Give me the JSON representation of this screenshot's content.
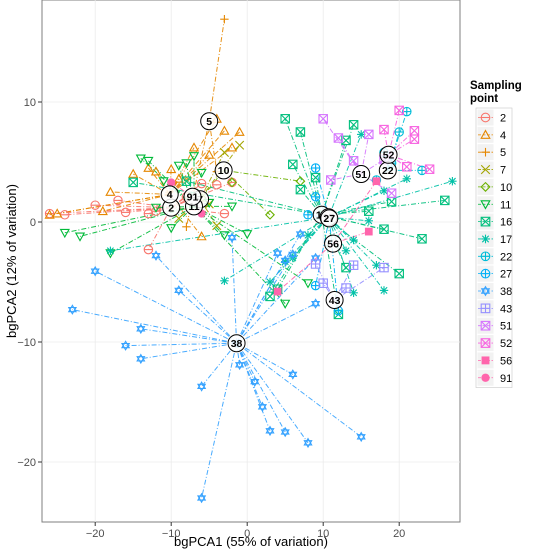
{
  "chart_data": {
    "type": "scatter",
    "title": "",
    "xlabel": "bgPCA1 (55% of variation)",
    "ylabel": "bgPCA2 (12% of variation)",
    "xlim": [
      -27,
      28
    ],
    "ylim": [
      -25,
      18.5
    ],
    "xticks": [
      -20,
      -10,
      0,
      10,
      20
    ],
    "yticks": [
      -20,
      -10,
      0,
      10
    ],
    "grid": true,
    "legend": {
      "title": "Sampling point",
      "position": "right"
    },
    "series": [
      {
        "name": "2",
        "color": "#F8766D",
        "symbol": "circle-minus",
        "centroid": [
          -10,
          1.2
        ],
        "points": [
          [
            -26,
            0.7
          ],
          [
            -24,
            0.6
          ],
          [
            -20,
            1.4
          ],
          [
            -17,
            1.8
          ],
          [
            -16,
            0.8
          ],
          [
            -13,
            0.7
          ],
          [
            -12,
            0.9
          ],
          [
            -8,
            2.1
          ],
          [
            -6,
            3.2
          ],
          [
            -4,
            3.1
          ],
          [
            -2,
            3.3
          ],
          [
            -3,
            0.7
          ],
          [
            -13,
            -2.3
          ]
        ]
      },
      {
        "name": "4",
        "color": "#E58700",
        "symbol": "triangle",
        "centroid": [
          -10.2,
          2.3
        ],
        "points": [
          [
            -26,
            0.6
          ],
          [
            -25,
            0.7
          ],
          [
            -19,
            0.9
          ],
          [
            -18,
            2.5
          ],
          [
            -15,
            4.0
          ],
          [
            -13,
            4.5
          ],
          [
            -12,
            4.2
          ],
          [
            -10,
            4.4
          ],
          [
            -9,
            3.6
          ],
          [
            -7,
            6.2
          ],
          [
            -5,
            5.6
          ],
          [
            -4,
            8.6
          ],
          [
            -3,
            7.6
          ],
          [
            -2,
            6.2
          ],
          [
            -1,
            7.5
          ],
          [
            -6,
            -1.2
          ]
        ]
      },
      {
        "name": "5",
        "color": "#E58700",
        "symbol": "plus",
        "centroid": [
          -5,
          8.4
        ],
        "points": [
          [
            -3,
            16.9
          ],
          [
            -4,
            4.2
          ],
          [
            -8,
            -0.4
          ]
        ]
      },
      {
        "name": "7",
        "color": "#A3A500",
        "symbol": "cross",
        "centroid": [
          -6.2,
          1.9
        ],
        "points": [
          [
            -9,
            0.3
          ],
          [
            -5,
            1.5
          ],
          [
            -3,
            5.8
          ],
          [
            -1,
            6.4
          ],
          [
            -4,
            -0.3
          ]
        ]
      },
      {
        "name": "10",
        "color": "#6BB100",
        "symbol": "diamond",
        "centroid": [
          -3.1,
          4.3
        ],
        "points": [
          [
            -6,
            2.0
          ],
          [
            -2,
            3.3
          ],
          [
            3,
            0.6
          ],
          [
            7,
            3.4
          ]
        ]
      },
      {
        "name": "11",
        "color": "#00BA38",
        "symbol": "triangle-down",
        "centroid": [
          -7,
          1.3
        ],
        "points": [
          [
            -24,
            -0.9
          ],
          [
            -22,
            -1.2
          ],
          [
            -18,
            -2.6
          ],
          [
            -14,
            5.3
          ],
          [
            -13,
            5.1
          ],
          [
            -12,
            1.2
          ],
          [
            -11,
            3.4
          ],
          [
            -9,
            4.7
          ],
          [
            -8,
            4.9
          ],
          [
            -7,
            5.5
          ],
          [
            -6,
            4.1
          ],
          [
            -5,
            1.6
          ],
          [
            -2,
            1.3
          ],
          [
            0,
            -1.0
          ],
          [
            -3,
            -1.1
          ],
          [
            5,
            -6.8
          ],
          [
            8,
            -5.1
          ],
          [
            -10,
            -0.5
          ]
        ]
      },
      {
        "name": "16",
        "color": "#00BF7D",
        "symbol": "square-cross",
        "centroid": [
          9.8,
          0.6
        ],
        "points": [
          [
            -15,
            3.3
          ],
          [
            -8,
            3.4
          ],
          [
            5,
            8.6
          ],
          [
            6,
            4.8
          ],
          [
            7,
            7.5
          ],
          [
            9,
            3.7
          ],
          [
            13,
            6.8
          ],
          [
            14,
            8.1
          ],
          [
            16,
            0.9
          ],
          [
            18,
            -0.6
          ],
          [
            19,
            1.7
          ],
          [
            23,
            -1.4
          ],
          [
            26,
            1.8
          ],
          [
            20,
            -4.3
          ],
          [
            13,
            -3.8
          ],
          [
            12,
            -7.7
          ],
          [
            4,
            -5.6
          ],
          [
            3,
            -6.2
          ],
          [
            7,
            2.7
          ]
        ]
      },
      {
        "name": "17",
        "color": "#00C1A7",
        "symbol": "asterisk",
        "centroid": [
          10.7,
          0.4
        ],
        "points": [
          [
            27,
            3.4
          ],
          [
            21,
            3.6
          ],
          [
            18,
            2.6
          ],
          [
            16,
            0.1
          ],
          [
            14,
            -1.5
          ],
          [
            17,
            -3.6
          ],
          [
            18,
            -5.7
          ],
          [
            14,
            -5.9
          ],
          [
            13,
            -2.4
          ],
          [
            8,
            -1.1
          ],
          [
            6,
            -3.0
          ],
          [
            5,
            -3.3
          ],
          [
            -3,
            -4.9
          ],
          [
            -18,
            -2.4
          ],
          [
            3,
            -5.0
          ],
          [
            15,
            7.3
          ]
        ]
      },
      {
        "name": "22",
        "color": "#00BCD8",
        "symbol": "circle-plus",
        "centroid": [
          18.5,
          4.3
        ],
        "points": [
          [
            21,
            9.2
          ],
          [
            20,
            7.5
          ],
          [
            18,
            5.8
          ],
          [
            19,
            4.9
          ],
          [
            23,
            4.3
          ],
          [
            17,
            3.5
          ]
        ]
      },
      {
        "name": "27",
        "color": "#00B0F6",
        "symbol": "circle-plus",
        "centroid": [
          10.8,
          0.3
        ],
        "points": [
          [
            9,
            4.5
          ],
          [
            9,
            2.1
          ],
          [
            8,
            0.6
          ],
          [
            12,
            -7.4
          ],
          [
            9,
            -5.3
          ]
        ]
      },
      {
        "name": "38",
        "color": "#35A2FF",
        "symbol": "star-of-david",
        "centroid": [
          -1.4,
          -10.1
        ],
        "points": [
          [
            -23,
            -7.3
          ],
          [
            -20,
            -4.1
          ],
          [
            -16,
            -10.3
          ],
          [
            -14,
            -8.9
          ],
          [
            -14,
            -11.4
          ],
          [
            -12,
            -2.8
          ],
          [
            -9,
            -5.7
          ],
          [
            -6,
            -13.7
          ],
          [
            -2,
            -1.3
          ],
          [
            -1,
            -11.9
          ],
          [
            1,
            -13.3
          ],
          [
            2,
            -15.4
          ],
          [
            3,
            -17.4
          ],
          [
            5,
            -17.5
          ],
          [
            6,
            -12.7
          ],
          [
            8,
            -18.4
          ],
          [
            15,
            -17.9
          ],
          [
            -6,
            -23.0
          ],
          [
            4,
            -2.6
          ],
          [
            5,
            -3.2
          ],
          [
            6,
            -2.7
          ],
          [
            9,
            -3.0
          ],
          [
            7,
            -1.0
          ],
          [
            9,
            -6.8
          ]
        ]
      },
      {
        "name": "43",
        "color": "#9590FF",
        "symbol": "square-plus",
        "centroid": [
          11.5,
          -6.5
        ],
        "points": [
          [
            9,
            -3.5
          ],
          [
            10,
            -5.1
          ],
          [
            13,
            -5.5
          ],
          [
            18,
            -3.8
          ],
          [
            14,
            -3.6
          ]
        ]
      },
      {
        "name": "51",
        "color": "#D575FE",
        "symbol": "square-cross",
        "centroid": [
          15,
          4.0
        ],
        "points": [
          [
            10,
            8.6
          ],
          [
            12,
            7.0
          ],
          [
            14,
            5.1
          ],
          [
            16,
            7.3
          ],
          [
            18,
            5.2
          ],
          [
            11,
            3.5
          ],
          [
            19,
            2.4
          ]
        ]
      },
      {
        "name": "52",
        "color": "#F763E0",
        "symbol": "square-x",
        "centroid": [
          18.6,
          5.6
        ],
        "points": [
          [
            20,
            9.3
          ],
          [
            22,
            7.6
          ],
          [
            21,
            4.6
          ],
          [
            24,
            4.4
          ],
          [
            18,
            7.7
          ],
          [
            22,
            6.9
          ]
        ]
      },
      {
        "name": "56",
        "color": "#FF65AC",
        "symbol": "square-filled",
        "centroid": [
          11.3,
          -1.8
        ],
        "points": [
          [
            4,
            -5.8
          ],
          [
            17,
            3.4
          ],
          [
            16,
            -0.8
          ]
        ]
      },
      {
        "name": "91",
        "color": "#FF65AC",
        "symbol": "circle-filled",
        "centroid": [
          -7.2,
          2.1
        ],
        "points": [
          [
            -10,
            3.3
          ],
          [
            -6,
            0.7
          ]
        ]
      }
    ]
  }
}
